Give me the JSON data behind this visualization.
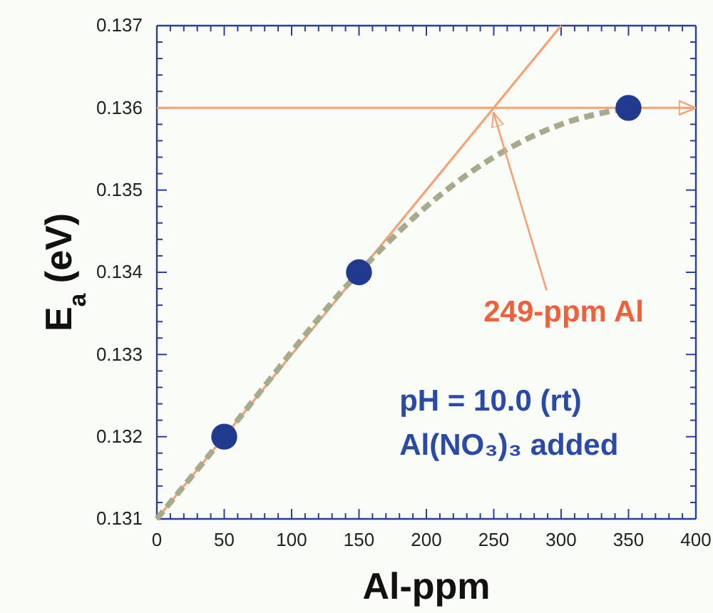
{
  "chart_data": {
    "type": "scatter",
    "xlabel": "Al-ppm",
    "ylabel": "E$_{a}$ (eV)",
    "xlim": [
      0,
      400
    ],
    "ylim": [
      0.131,
      0.137
    ],
    "xticks": [
      0,
      50,
      100,
      150,
      200,
      250,
      300,
      350,
      400,
      {
        "value": 10,
        "label": null
      },
      {
        "value": 20,
        "label": null
      },
      {
        "value": 30,
        "label": null
      },
      {
        "value": 40,
        "label": null
      },
      {
        "value": 60,
        "label": null
      },
      {
        "value": 70,
        "label": null
      },
      {
        "value": 80,
        "label": null
      },
      {
        "value": 90,
        "label": null
      },
      {
        "value": 110,
        "label": null
      },
      {
        "value": 120,
        "label": null
      },
      {
        "value": 130,
        "label": null
      },
      {
        "value": 140,
        "label": null
      },
      {
        "value": 160,
        "label": null
      },
      {
        "value": 170,
        "label": null
      },
      {
        "value": 180,
        "label": null
      },
      {
        "value": 190,
        "label": null
      },
      {
        "value": 210,
        "label": null
      },
      {
        "value": 220,
        "label": null
      },
      {
        "value": 230,
        "label": null
      },
      {
        "value": 240,
        "label": null
      },
      {
        "value": 260,
        "label": null
      },
      {
        "value": 270,
        "label": null
      },
      {
        "value": 280,
        "label": null
      },
      {
        "value": 290,
        "label": null
      },
      {
        "value": 310,
        "label": null
      },
      {
        "value": 320,
        "label": null
      },
      {
        "value": 330,
        "label": null
      },
      {
        "value": 340,
        "label": null
      },
      {
        "value": 360,
        "label": null
      },
      {
        "value": 370,
        "label": null
      },
      {
        "value": 380,
        "label": null
      },
      {
        "value": 390,
        "label": null
      }
    ],
    "yticks": [
      0.131,
      0.132,
      0.133,
      0.134,
      0.135,
      0.136,
      0.137,
      {
        "value": 0.1312,
        "label": null
      },
      {
        "value": 0.1314,
        "label": null
      },
      {
        "value": 0.1316,
        "label": null
      },
      {
        "value": 0.1318,
        "label": null
      },
      {
        "value": 0.1322,
        "label": null
      },
      {
        "value": 0.1324,
        "label": null
      },
      {
        "value": 0.1326,
        "label": null
      },
      {
        "value": 0.1328,
        "label": null
      },
      {
        "value": 0.1332,
        "label": null
      },
      {
        "value": 0.1334,
        "label": null
      },
      {
        "value": 0.1336,
        "label": null
      },
      {
        "value": 0.1338,
        "label": null
      },
      {
        "value": 0.1342,
        "label": null
      },
      {
        "value": 0.1344,
        "label": null
      },
      {
        "value": 0.1346,
        "label": null
      },
      {
        "value": 0.1348,
        "label": null
      },
      {
        "value": 0.1352,
        "label": null
      },
      {
        "value": 0.1354,
        "label": null
      },
      {
        "value": 0.1356,
        "label": null
      },
      {
        "value": 0.1358,
        "label": null
      },
      {
        "value": 0.1362,
        "label": null
      },
      {
        "value": 0.1364,
        "label": null
      },
      {
        "value": 0.1366,
        "label": null
      },
      {
        "value": 0.1368,
        "label": null
      }
    ],
    "grid": false,
    "series": [
      {
        "type": "line",
        "color": "#f7a070",
        "line_style": "solid",
        "marker": "none",
        "x": [
          0,
          300
        ],
        "values": [
          0.131,
          0.137
        ]
      },
      {
        "type": "line",
        "color": "#a9aa8c",
        "line_style": "dashed",
        "marker": "none",
        "x": [
          0,
          50,
          150,
          200,
          250,
          300,
          350
        ],
        "values": [
          0.131,
          0.132,
          0.134,
          0.1348,
          0.1354,
          0.1358,
          0.136
        ]
      },
      {
        "color": "#1f3a8f",
        "marker": "circle",
        "x": [
          50,
          150,
          350
        ],
        "values": [
          0.132,
          0.134,
          0.136
        ]
      }
    ],
    "ref_lines": [
      {
        "axis": "y",
        "value": 0.136,
        "color": "#f7a070",
        "line_style": "solid"
      }
    ],
    "annotations": [
      {
        "text": "249-ppm Al",
        "x": 249,
        "y": 0.136
      },
      "pH = 10.0 (rt)",
      "Al(NO₃)₃ added"
    ]
  }
}
